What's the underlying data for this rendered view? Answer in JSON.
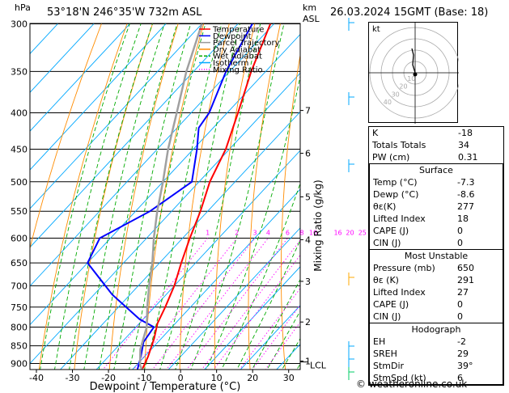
{
  "header": {
    "location": "53°18'N  246°35'W  732m  ASL",
    "datetime": "26.03.2024  15GMT  (Base: 18)",
    "hpa_label": "hPa",
    "km_label": "km",
    "asl_label": "ASL"
  },
  "legend": [
    {
      "label": "Temperature",
      "color": "#ff0000"
    },
    {
      "label": "Dewpoint",
      "color": "#0000ff"
    },
    {
      "label": "Parcel Trajectory",
      "color": "#999999"
    },
    {
      "label": "Dry Adiabat",
      "color": "#ff8c00"
    },
    {
      "label": "Wet Adiabat",
      "color": "#00aa00"
    },
    {
      "label": "Isotherm",
      "color": "#00aaff"
    },
    {
      "label": "Mixing Ratio",
      "color": "#ff00ff"
    }
  ],
  "colors": {
    "temperature": "#ff0000",
    "dewpoint": "#0000ff",
    "parcel": "#a0a0a0",
    "dry_adiabat": "#ff8c00",
    "wet_adiabat": "#00aa00",
    "isotherm": "#00a8ff",
    "mixing_ratio": "#ff00ff"
  },
  "chart_data": {
    "type": "line",
    "xlabel": "Dewpoint / Temperature (°C)",
    "ylabel": "hPa",
    "right_ylabel": "Mixing Ratio (g/kg)",
    "xlim": [
      -40,
      35
    ],
    "ylim": [
      900,
      300
    ],
    "log_y": true,
    "skew": true,
    "x_ticks": [
      "-40",
      "-30",
      "-20",
      "-10",
      "0",
      "10",
      "20",
      "30"
    ],
    "pressure_ticks": [
      300,
      350,
      400,
      450,
      500,
      550,
      600,
      650,
      700,
      750,
      800,
      850,
      900
    ],
    "km_ticks": [
      {
        "label": "7",
        "p": 397
      },
      {
        "label": "6",
        "p": 456
      },
      {
        "label": "5",
        "p": 525
      },
      {
        "label": "4",
        "p": 603
      },
      {
        "label": "3",
        "p": 690
      },
      {
        "label": "2",
        "p": 787
      },
      {
        "label": "1",
        "p": 893
      },
      {
        "label": "LCL",
        "p": 905
      }
    ],
    "mixing_ratio_labels": [
      "1",
      "2",
      "3",
      "4",
      "6",
      "8",
      "10",
      "16",
      "20",
      "25"
    ],
    "series": [
      {
        "name": "Temperature",
        "points": [
          [
            -7.3,
            918
          ],
          [
            -9,
            880
          ],
          [
            -12,
            830
          ],
          [
            -15,
            790
          ],
          [
            -17,
            750
          ],
          [
            -20,
            700
          ],
          [
            -24,
            650
          ],
          [
            -28,
            600
          ],
          [
            -32,
            550
          ],
          [
            -37,
            500
          ],
          [
            -41,
            450
          ],
          [
            -47,
            400
          ],
          [
            -54,
            350
          ],
          [
            -61,
            300
          ]
        ]
      },
      {
        "name": "Dewpoint",
        "points": [
          [
            -8.6,
            918
          ],
          [
            -11,
            880
          ],
          [
            -14,
            840
          ],
          [
            -15,
            800
          ],
          [
            -21,
            780
          ],
          [
            -35,
            720
          ],
          [
            -50,
            650
          ],
          [
            -53,
            600
          ],
          [
            -46,
            550
          ],
          [
            -42,
            500
          ],
          [
            -49,
            450
          ],
          [
            -54,
            420
          ],
          [
            -55,
            400
          ],
          [
            -61,
            350
          ],
          [
            -66,
            300
          ]
        ]
      },
      {
        "name": "Parcel Trajectory",
        "points": [
          [
            -7.3,
            918
          ],
          [
            -9,
            905
          ],
          [
            -13,
            860
          ],
          [
            -17,
            800
          ],
          [
            -22,
            750
          ],
          [
            -27,
            700
          ],
          [
            -32,
            650
          ],
          [
            -38,
            600
          ],
          [
            -44,
            550
          ],
          [
            -50,
            500
          ],
          [
            -57,
            450
          ],
          [
            -64,
            400
          ],
          [
            -72,
            350
          ],
          [
            -80,
            300
          ]
        ]
      }
    ]
  },
  "hodograph": {
    "label": "kt",
    "ring_labels": [
      "10",
      "20",
      "30",
      "40"
    ]
  },
  "indices": {
    "k_label": "K",
    "k_value": "-18",
    "tt_label": "Totals Totals",
    "tt_value": "34",
    "pw_label": "PW (cm)",
    "pw_value": "0.31"
  },
  "surface": {
    "title": "Surface",
    "rows": [
      {
        "label": "Temp (°C)",
        "value": "-7.3"
      },
      {
        "label": "Dewp (°C)",
        "value": "-8.6"
      },
      {
        "label": "θε(K)",
        "value": "277"
      },
      {
        "label": "Lifted Index",
        "value": "18"
      },
      {
        "label": "CAPE (J)",
        "value": "0"
      },
      {
        "label": "CIN (J)",
        "value": "0"
      }
    ]
  },
  "most_unstable": {
    "title": "Most Unstable",
    "rows": [
      {
        "label": "Pressure (mb)",
        "value": "650"
      },
      {
        "label": "θε (K)",
        "value": "291"
      },
      {
        "label": "Lifted Index",
        "value": "27"
      },
      {
        "label": "CAPE (J)",
        "value": "0"
      },
      {
        "label": "CIN (J)",
        "value": "0"
      }
    ]
  },
  "hodograph_table": {
    "title": "Hodograph",
    "rows": [
      {
        "label": "EH",
        "value": "-2"
      },
      {
        "label": "SREH",
        "value": "29"
      },
      {
        "label": "StmDir",
        "value": "39°"
      },
      {
        "label": "StmSpd (kt)",
        "value": "6"
      }
    ]
  },
  "footer": "© weatheronline.co.uk"
}
